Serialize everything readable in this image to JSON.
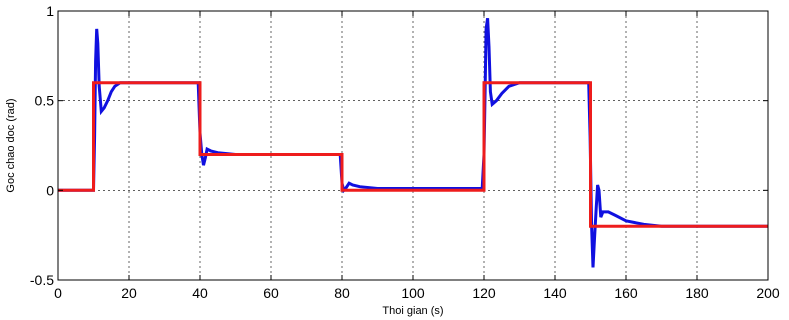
{
  "chart_data": {
    "type": "line",
    "title": "",
    "xlabel": "Thoi gian (s)",
    "ylabel": "Goc chao doc (rad)",
    "xlim": [
      0,
      200
    ],
    "ylim": [
      -0.5,
      1
    ],
    "xticks": [
      0,
      20,
      40,
      60,
      80,
      100,
      120,
      140,
      160,
      180,
      200
    ],
    "yticks": [
      -0.5,
      0,
      0.5,
      1
    ],
    "xtick_labels": [
      "0",
      "20",
      "40",
      "60",
      "80",
      "100",
      "120",
      "140",
      "160",
      "180",
      "200"
    ],
    "ytick_labels": [
      "-0.5",
      "0",
      "0.5",
      "1"
    ],
    "grid": true,
    "series": [
      {
        "color": "#1010e0",
        "points": [
          [
            0,
            0
          ],
          [
            10,
            0
          ],
          [
            10.3,
            0.3
          ],
          [
            10.6,
            0.72
          ],
          [
            10.9,
            0.9
          ],
          [
            11.2,
            0.82
          ],
          [
            11.6,
            0.58
          ],
          [
            12.2,
            0.44
          ],
          [
            13,
            0.46
          ],
          [
            14,
            0.5
          ],
          [
            15,
            0.55
          ],
          [
            16,
            0.58
          ],
          [
            17.5,
            0.6
          ],
          [
            20,
            0.6
          ],
          [
            39.5,
            0.6
          ],
          [
            40,
            0.32
          ],
          [
            40.5,
            0.2
          ],
          [
            41,
            0.14
          ],
          [
            41.5,
            0.18
          ],
          [
            42,
            0.23
          ],
          [
            43,
            0.22
          ],
          [
            45,
            0.21
          ],
          [
            50,
            0.2
          ],
          [
            79.5,
            0.2
          ],
          [
            80,
            0.04
          ],
          [
            80.5,
            0.0
          ],
          [
            81,
            0.01
          ],
          [
            82,
            0.04
          ],
          [
            83,
            0.03
          ],
          [
            85,
            0.02
          ],
          [
            90,
            0.01
          ],
          [
            100,
            0.01
          ],
          [
            119.5,
            0.01
          ],
          [
            120,
            0.2
          ],
          [
            120.3,
            0.55
          ],
          [
            120.6,
            0.9
          ],
          [
            121,
            0.96
          ],
          [
            121.4,
            0.8
          ],
          [
            121.8,
            0.55
          ],
          [
            122.3,
            0.48
          ],
          [
            123.5,
            0.5
          ],
          [
            125,
            0.54
          ],
          [
            127,
            0.58
          ],
          [
            130,
            0.6
          ],
          [
            149.5,
            0.6
          ],
          [
            149.9,
            0.3
          ],
          [
            150.3,
            -0.2
          ],
          [
            150.7,
            -0.43
          ],
          [
            151.1,
            -0.28
          ],
          [
            151.6,
            -0.1
          ],
          [
            152,
            0.03
          ],
          [
            152.4,
            0.0
          ],
          [
            152.9,
            -0.15
          ],
          [
            153.5,
            -0.12
          ],
          [
            155,
            -0.12
          ],
          [
            157,
            -0.14
          ],
          [
            160,
            -0.17
          ],
          [
            165,
            -0.19
          ],
          [
            170,
            -0.2
          ],
          [
            200,
            -0.2
          ]
        ]
      },
      {
        "color": "#ee1c1c",
        "points": [
          [
            0,
            0
          ],
          [
            10,
            0
          ],
          [
            10,
            0.6
          ],
          [
            40,
            0.6
          ],
          [
            40,
            0.2
          ],
          [
            80,
            0.2
          ],
          [
            80,
            0.0
          ],
          [
            120,
            0.0
          ],
          [
            120,
            0.6
          ],
          [
            150,
            0.6
          ],
          [
            150,
            -0.2
          ],
          [
            200,
            -0.2
          ]
        ]
      }
    ]
  }
}
